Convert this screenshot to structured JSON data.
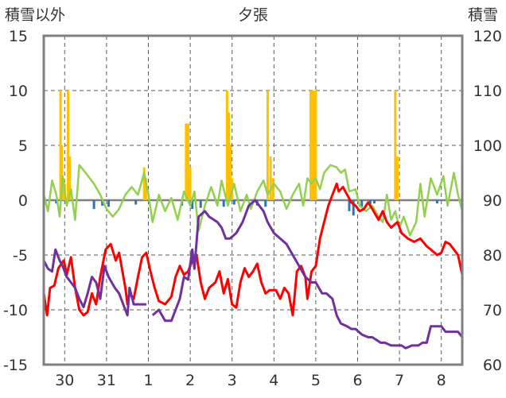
{
  "chart_data": {
    "type": "combo",
    "title": "夕張",
    "ylabel_left": "積雪以外",
    "ylabel_right": "積雪",
    "ylim_left": [
      -15,
      15
    ],
    "ylim_right": [
      60,
      120
    ],
    "yticks_left": [
      "15",
      "10",
      "5",
      "0",
      "-5",
      "-10",
      "-15"
    ],
    "yticks_right": [
      "120",
      "110",
      "100",
      "90",
      "80",
      "70",
      "60"
    ],
    "x_range": [
      0,
      10
    ],
    "categories": [
      "30",
      "31",
      "1",
      "2",
      "3",
      "4",
      "5",
      "6",
      "7",
      "8"
    ],
    "grid": true,
    "colors": {
      "frame": "#7f7f7f",
      "grid": "#595959",
      "snowfall": "#ffc000",
      "precip": "#2e75b6",
      "temp_max": "#92d050",
      "temp_min": "#ff0000",
      "snow_depth": "#7030a0"
    },
    "snowfall": [
      [
        0.4,
        10
      ],
      [
        0.43,
        5
      ],
      [
        0.47,
        2
      ],
      [
        0.5,
        1.5
      ],
      [
        0.58,
        10
      ],
      [
        0.62,
        4
      ],
      [
        2.4,
        3
      ],
      [
        2.44,
        2
      ],
      [
        3.4,
        7
      ],
      [
        3.45,
        7
      ],
      [
        3.5,
        3
      ],
      [
        4.38,
        10
      ],
      [
        4.42,
        8
      ],
      [
        4.46,
        5
      ],
      [
        4.5,
        2
      ],
      [
        5.35,
        10
      ],
      [
        5.42,
        4
      ],
      [
        5.48,
        2
      ],
      [
        6.38,
        10
      ],
      [
        6.42,
        10
      ],
      [
        6.46,
        10
      ],
      [
        6.5,
        10
      ],
      [
        8.4,
        10
      ],
      [
        8.45,
        4
      ]
    ],
    "precip": [
      [
        0.3,
        -0.3
      ],
      [
        1.2,
        -0.8
      ],
      [
        1.4,
        -0.5
      ],
      [
        1.55,
        -0.6
      ],
      [
        2.2,
        -0.4
      ],
      [
        3.3,
        -0.5
      ],
      [
        3.55,
        -0.8
      ],
      [
        3.75,
        -0.7
      ],
      [
        4.3,
        -0.6
      ],
      [
        4.55,
        -0.4
      ],
      [
        5.1,
        -0.5
      ],
      [
        5.3,
        -0.6
      ],
      [
        7.3,
        -1.0
      ],
      [
        7.4,
        -1.4
      ],
      [
        7.6,
        -0.6
      ],
      [
        7.8,
        -0.4
      ],
      [
        7.9,
        -0.3
      ],
      [
        9.4,
        -0.3
      ]
    ],
    "temp_max": [
      [
        0.0,
        0.5
      ],
      [
        0.1,
        -1.0
      ],
      [
        0.2,
        1.8
      ],
      [
        0.3,
        0.5
      ],
      [
        0.38,
        -1.5
      ],
      [
        0.45,
        2.2
      ],
      [
        0.55,
        -0.5
      ],
      [
        0.65,
        1.0
      ],
      [
        0.75,
        -1.8
      ],
      [
        0.85,
        3.2
      ],
      [
        1.0,
        2.5
      ],
      [
        1.2,
        1.5
      ],
      [
        1.35,
        0.5
      ],
      [
        1.5,
        -0.8
      ],
      [
        1.65,
        -1.5
      ],
      [
        1.8,
        -0.8
      ],
      [
        1.95,
        0.5
      ],
      [
        2.1,
        1.2
      ],
      [
        2.25,
        0.5
      ],
      [
        2.4,
        2.5
      ],
      [
        2.5,
        0.5
      ],
      [
        2.6,
        -2.0
      ],
      [
        2.75,
        0.5
      ],
      [
        2.9,
        -1.0
      ],
      [
        3.05,
        0.2
      ],
      [
        3.2,
        -1.8
      ],
      [
        3.35,
        0.8
      ],
      [
        3.5,
        -0.5
      ],
      [
        3.6,
        0.8
      ],
      [
        3.7,
        -2.8
      ],
      [
        3.85,
        -0.5
      ],
      [
        4.0,
        1.2
      ],
      [
        4.15,
        -0.5
      ],
      [
        4.25,
        1.8
      ],
      [
        4.4,
        -0.5
      ],
      [
        4.55,
        1.5
      ],
      [
        4.7,
        -1.0
      ],
      [
        4.85,
        0.5
      ],
      [
        4.95,
        -0.8
      ],
      [
        5.1,
        0.8
      ],
      [
        5.25,
        1.8
      ],
      [
        5.35,
        0.5
      ],
      [
        5.5,
        1.5
      ],
      [
        5.65,
        0.8
      ],
      [
        5.8,
        -0.8
      ],
      [
        5.95,
        0.5
      ],
      [
        6.1,
        1.5
      ],
      [
        6.2,
        -0.5
      ],
      [
        6.3,
        2.0
      ],
      [
        6.4,
        1.5
      ],
      [
        6.5,
        2.0
      ],
      [
        6.6,
        1.0
      ],
      [
        6.7,
        2.5
      ],
      [
        6.85,
        3.2
      ],
      [
        7.0,
        3.0
      ],
      [
        7.1,
        2.5
      ],
      [
        7.2,
        2.8
      ],
      [
        7.3,
        0.8
      ],
      [
        7.45,
        1.0
      ],
      [
        7.55,
        -0.5
      ],
      [
        7.7,
        -1.0
      ],
      [
        7.85,
        -0.5
      ],
      [
        8.0,
        -1.5
      ],
      [
        8.1,
        -2.0
      ],
      [
        8.2,
        0.5
      ],
      [
        8.3,
        -1.8
      ],
      [
        8.4,
        -1.0
      ],
      [
        8.5,
        -2.5
      ],
      [
        8.6,
        -1.5
      ],
      [
        8.75,
        -3.2
      ],
      [
        8.9,
        -2.0
      ],
      [
        9.0,
        1.5
      ],
      [
        9.1,
        -1.5
      ],
      [
        9.25,
        2.0
      ],
      [
        9.4,
        0.5
      ],
      [
        9.55,
        2.2
      ],
      [
        9.65,
        -0.5
      ],
      [
        9.8,
        2.5
      ],
      [
        9.9,
        0.5
      ],
      [
        10.0,
        -1.0
      ]
    ],
    "temp_min": [
      [
        0.0,
        -8.5
      ],
      [
        0.08,
        -10.5
      ],
      [
        0.15,
        -8.0
      ],
      [
        0.25,
        -7.8
      ],
      [
        0.35,
        -6.2
      ],
      [
        0.48,
        -5.5
      ],
      [
        0.55,
        -6.8
      ],
      [
        0.65,
        -5.2
      ],
      [
        0.75,
        -8.0
      ],
      [
        0.85,
        -10.0
      ],
      [
        0.95,
        -10.5
      ],
      [
        1.05,
        -10.2
      ],
      [
        1.15,
        -8.5
      ],
      [
        1.25,
        -9.5
      ],
      [
        1.35,
        -7.0
      ],
      [
        1.48,
        -4.5
      ],
      [
        1.6,
        -4.0
      ],
      [
        1.72,
        -5.5
      ],
      [
        1.8,
        -4.8
      ],
      [
        1.88,
        -6.5
      ],
      [
        1.95,
        -8.0
      ],
      [
        2.0,
        -9.5
      ],
      [
        2.05,
        -8.5
      ],
      [
        2.15,
        -9.0
      ],
      [
        2.25,
        -7.0
      ],
      [
        2.35,
        -5.2
      ],
      [
        2.45,
        -4.8
      ],
      [
        2.55,
        -6.5
      ],
      [
        2.65,
        -8.0
      ],
      [
        2.75,
        -9.2
      ],
      [
        2.9,
        -9.5
      ],
      [
        3.05,
        -8.8
      ],
      [
        3.15,
        -7.0
      ],
      [
        3.25,
        -6.0
      ],
      [
        3.35,
        -6.8
      ],
      [
        3.45,
        -6.5
      ],
      [
        3.55,
        -5.5
      ],
      [
        3.65,
        -5.0
      ],
      [
        3.75,
        -7.5
      ],
      [
        3.85,
        -9.0
      ],
      [
        3.95,
        -8.0
      ],
      [
        4.1,
        -7.5
      ],
      [
        4.2,
        -6.5
      ],
      [
        4.3,
        -8.5
      ],
      [
        4.4,
        -7.2
      ],
      [
        4.5,
        -9.5
      ],
      [
        4.6,
        -9.8
      ],
      [
        4.7,
        -7.5
      ],
      [
        4.8,
        -6.2
      ],
      [
        4.9,
        -7.0
      ],
      [
        5.0,
        -6.5
      ],
      [
        5.1,
        -5.8
      ],
      [
        5.2,
        -7.5
      ],
      [
        5.3,
        -8.5
      ],
      [
        5.4,
        -8.2
      ],
      [
        5.55,
        -8.2
      ],
      [
        5.65,
        -9.0
      ],
      [
        5.75,
        -8.0
      ],
      [
        5.85,
        -8.5
      ],
      [
        5.95,
        -10.5
      ],
      [
        6.05,
        -6.5
      ],
      [
        6.15,
        -6.0
      ],
      [
        6.25,
        -7.0
      ],
      [
        6.3,
        -9.0
      ],
      [
        6.4,
        -6.5
      ],
      [
        6.5,
        -6.0
      ],
      [
        6.6,
        -3.5
      ],
      [
        6.7,
        -2.0
      ],
      [
        6.8,
        -0.5
      ],
      [
        6.9,
        0.5
      ],
      [
        7.0,
        1.5
      ],
      [
        7.05,
        0.8
      ],
      [
        7.15,
        1.2
      ],
      [
        7.25,
        0.5
      ],
      [
        7.35,
        -0.2
      ],
      [
        7.45,
        -0.5
      ],
      [
        7.55,
        -1.0
      ],
      [
        7.65,
        -0.8
      ],
      [
        7.75,
        -0.2
      ],
      [
        7.85,
        -0.8
      ],
      [
        8.0,
        -1.8
      ],
      [
        8.1,
        -1.0
      ],
      [
        8.2,
        -2.0
      ],
      [
        8.3,
        -2.5
      ],
      [
        8.45,
        -2.0
      ],
      [
        8.55,
        -3.0
      ],
      [
        8.7,
        -3.5
      ],
      [
        8.85,
        -3.8
      ],
      [
        9.0,
        -3.5
      ],
      [
        9.15,
        -4.2
      ],
      [
        9.25,
        -4.5
      ],
      [
        9.4,
        -5.0
      ],
      [
        9.5,
        -4.8
      ],
      [
        9.6,
        -3.8
      ],
      [
        9.7,
        -4.0
      ],
      [
        9.8,
        -4.5
      ],
      [
        9.9,
        -5.0
      ],
      [
        10.0,
        -6.8
      ]
    ],
    "snow_depth": [
      [
        0.0,
        79
      ],
      [
        0.1,
        77.5
      ],
      [
        0.2,
        77
      ],
      [
        0.28,
        81
      ],
      [
        0.38,
        79
      ],
      [
        0.45,
        78
      ],
      [
        0.55,
        76
      ],
      [
        0.65,
        75
      ],
      [
        0.75,
        74
      ],
      [
        0.85,
        72
      ],
      [
        0.95,
        70.5
      ],
      [
        1.05,
        73
      ],
      [
        1.15,
        76
      ],
      [
        1.25,
        75
      ],
      [
        1.35,
        72
      ],
      [
        1.45,
        78
      ],
      [
        1.55,
        76
      ],
      [
        1.7,
        74
      ],
      [
        1.8,
        73
      ],
      [
        1.9,
        71
      ],
      [
        2.0,
        69
      ],
      [
        2.05,
        74
      ],
      [
        2.15,
        71
      ],
      [
        2.3,
        71
      ],
      [
        2.45,
        71
      ],
      [
        2.6,
        69
      ],
      [
        2.75,
        70
      ],
      [
        2.9,
        68
      ],
      [
        3.05,
        68
      ],
      [
        3.15,
        70
      ],
      [
        3.25,
        72
      ],
      [
        3.35,
        76
      ],
      [
        3.45,
        75.5
      ],
      [
        3.55,
        81
      ],
      [
        3.6,
        77.5
      ],
      [
        3.7,
        87
      ],
      [
        3.85,
        88
      ],
      [
        3.95,
        87
      ],
      [
        4.05,
        86.5
      ],
      [
        4.15,
        86
      ],
      [
        4.25,
        85
      ],
      [
        4.35,
        83
      ],
      [
        4.45,
        83
      ],
      [
        4.6,
        84
      ],
      [
        4.75,
        86
      ],
      [
        4.9,
        89
      ],
      [
        5.05,
        90
      ],
      [
        5.15,
        89
      ],
      [
        5.25,
        88
      ],
      [
        5.35,
        86
      ],
      [
        5.5,
        84
      ],
      [
        5.65,
        83
      ],
      [
        5.8,
        82
      ],
      [
        5.95,
        80
      ],
      [
        6.1,
        78
      ],
      [
        6.25,
        76
      ],
      [
        6.4,
        75
      ],
      [
        6.5,
        75
      ],
      [
        6.65,
        73
      ],
      [
        6.75,
        73
      ],
      [
        6.9,
        72
      ],
      [
        7.0,
        69
      ],
      [
        7.1,
        67.5
      ],
      [
        7.25,
        67
      ],
      [
        7.35,
        66.5
      ],
      [
        7.45,
        66.5
      ],
      [
        7.6,
        65.5
      ],
      [
        7.75,
        65
      ],
      [
        7.85,
        65
      ],
      [
        7.95,
        64.5
      ],
      [
        8.05,
        64
      ],
      [
        8.15,
        64
      ],
      [
        8.3,
        63.5
      ],
      [
        8.45,
        63.5
      ],
      [
        8.55,
        63.5
      ],
      [
        8.65,
        63
      ],
      [
        8.8,
        63.5
      ],
      [
        8.95,
        63.5
      ],
      [
        9.05,
        64
      ],
      [
        9.15,
        64
      ],
      [
        9.25,
        67
      ],
      [
        9.35,
        67
      ],
      [
        9.5,
        67
      ],
      [
        9.6,
        66
      ],
      [
        9.75,
        66
      ],
      [
        9.9,
        66
      ],
      [
        10.0,
        65
      ]
    ],
    "snow_depth_gaps": [
      [
        2.45,
        2.52
      ]
    ]
  }
}
